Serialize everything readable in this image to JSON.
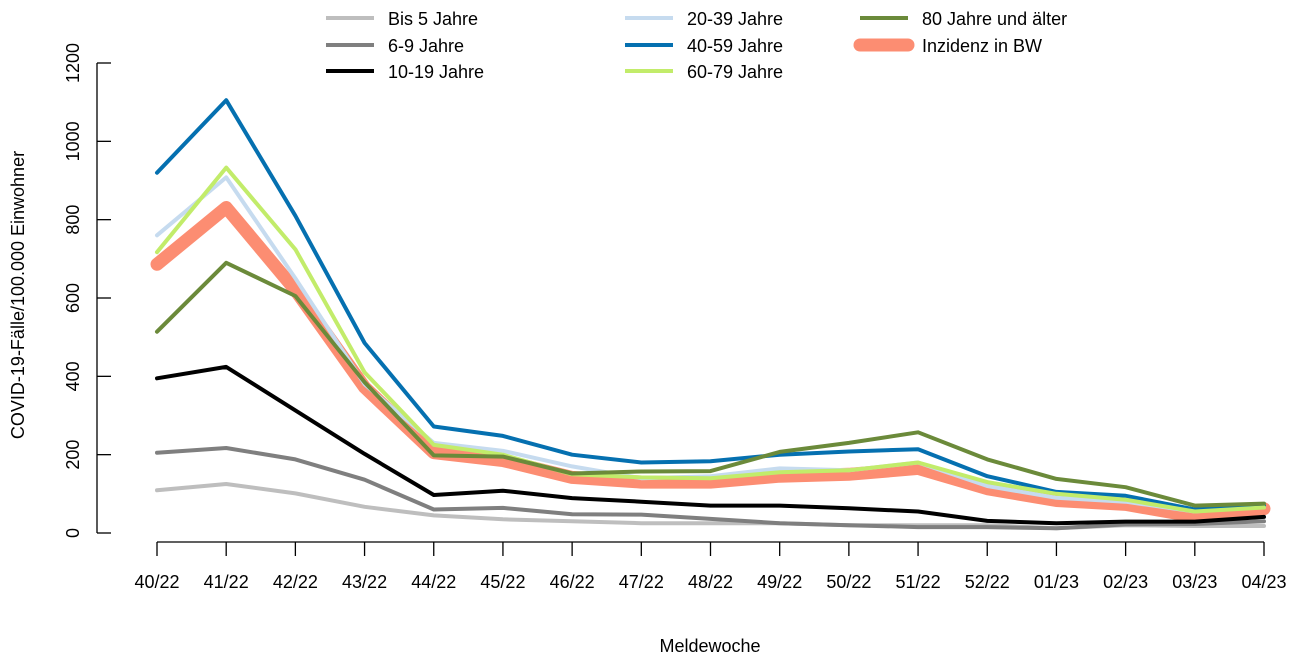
{
  "chart_data": {
    "type": "line",
    "title": "",
    "xlabel": "Meldewoche",
    "ylabel": "COVID-19-Fälle/100.000 Einwohner",
    "ylim": [
      0,
      1200
    ],
    "yticks": [
      0,
      200,
      400,
      600,
      800,
      1000,
      1200
    ],
    "grid": false,
    "legend_position": "top",
    "categories": [
      "40/22",
      "41/22",
      "42/22",
      "43/22",
      "44/22",
      "45/22",
      "46/22",
      "47/22",
      "48/22",
      "49/22",
      "50/22",
      "51/22",
      "52/22",
      "01/23",
      "02/23",
      "03/23",
      "04/23"
    ],
    "series": [
      {
        "name": "Bis 5 Jahre",
        "color": "#bebebe",
        "values": [
          109,
          125,
          101,
          67,
          45,
          35,
          30,
          25,
          25,
          25,
          20,
          20,
          20,
          12,
          20,
          18,
          18
        ]
      },
      {
        "name": "6-9 Jahre",
        "color": "#7f7f7f",
        "values": [
          205,
          217,
          188,
          136,
          60,
          64,
          48,
          47,
          36,
          25,
          20,
          15,
          15,
          12,
          22,
          23,
          30
        ]
      },
      {
        "name": "10-19 Jahre",
        "color": "#000000",
        "values": [
          395,
          424,
          313,
          202,
          97,
          108,
          89,
          80,
          70,
          70,
          63,
          55,
          31,
          25,
          29,
          29,
          41
        ]
      },
      {
        "name": "20-39 Jahre",
        "color": "#c6dbef",
        "values": [
          760,
          908,
          650,
          380,
          230,
          210,
          170,
          140,
          145,
          165,
          160,
          180,
          120,
          90,
          80,
          55,
          70
        ]
      },
      {
        "name": "40-59 Jahre",
        "color": "#0570b0",
        "values": [
          920,
          1105,
          810,
          485,
          272,
          248,
          200,
          180,
          183,
          200,
          208,
          214,
          145,
          105,
          95,
          60,
          70
        ]
      },
      {
        "name": "60-79 Jahre",
        "color": "#c2ec6a",
        "values": [
          717,
          933,
          724,
          410,
          225,
          200,
          150,
          142,
          140,
          155,
          160,
          180,
          130,
          100,
          85,
          55,
          65
        ]
      },
      {
        "name": "80 Jahre und älter",
        "color": "#6b8a3a",
        "values": [
          514,
          690,
          605,
          385,
          198,
          195,
          152,
          157,
          158,
          207,
          230,
          257,
          188,
          138,
          117,
          70,
          75
        ]
      },
      {
        "name": "Inzidenz in BW",
        "color": "#fc8d72",
        "values": [
          686,
          831,
          620,
          372,
          205,
          185,
          142,
          130,
          130,
          145,
          150,
          165,
          113,
          83,
          73,
          42,
          62
        ]
      }
    ],
    "legend_columns": [
      [
        "Bis 5 Jahre",
        "6-9 Jahre",
        "10-19 Jahre"
      ],
      [
        "20-39 Jahre",
        "40-59 Jahre",
        "60-79 Jahre"
      ],
      [
        "80 Jahre und älter",
        "Inzidenz in BW"
      ]
    ]
  }
}
